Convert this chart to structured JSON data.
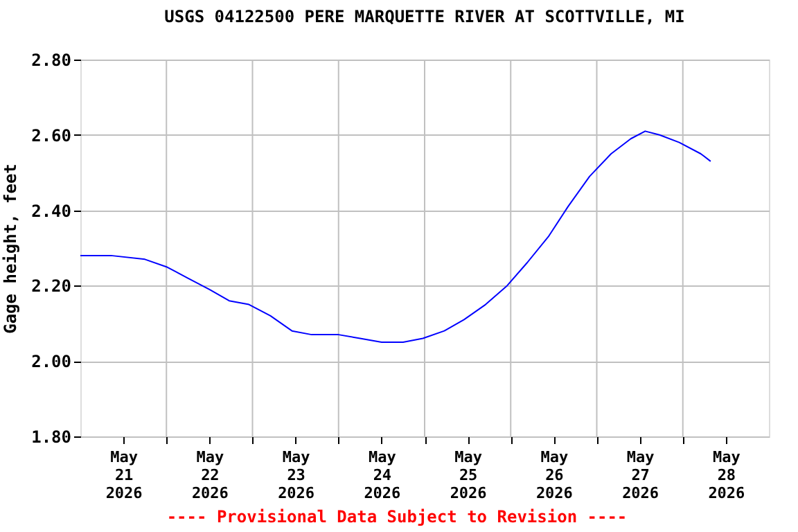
{
  "chart_data": {
    "type": "line",
    "title": "USGS 04122500 PERE MARQUETTE RIVER AT SCOTTVILLE, MI",
    "ylabel": "Gage height, feet",
    "annotations": [
      "---- Provisional Data Subject to Revision ----"
    ],
    "x": [
      "2026-05-21T00:00",
      "2026-05-21T08:30",
      "2026-05-21T18:00",
      "2026-05-22T00:00",
      "2026-05-22T06:00",
      "2026-05-22T12:00",
      "2026-05-22T17:30",
      "2026-05-22T23:00",
      "2026-05-23T05:00",
      "2026-05-23T11:00",
      "2026-05-23T16:30",
      "2026-05-24T00:00",
      "2026-05-24T06:00",
      "2026-05-24T12:00",
      "2026-05-24T18:00",
      "2026-05-24T23:30",
      "2026-05-25T05:30",
      "2026-05-25T11:00",
      "2026-05-25T17:00",
      "2026-05-25T23:00",
      "2026-05-26T04:30",
      "2026-05-26T10:30",
      "2026-05-26T16:00",
      "2026-05-26T22:00",
      "2026-05-27T04:00",
      "2026-05-27T09:30",
      "2026-05-27T13:30",
      "2026-05-27T17:30",
      "2026-05-27T23:00",
      "2026-05-28T05:00",
      "2026-05-28T07:45"
    ],
    "series": [
      {
        "color": "#0000ff",
        "values": [
          2.28,
          2.28,
          2.27,
          2.25,
          2.22,
          2.19,
          2.16,
          2.15,
          2.12,
          2.08,
          2.07,
          2.07,
          2.06,
          2.05,
          2.05,
          2.06,
          2.08,
          2.11,
          2.15,
          2.2,
          2.26,
          2.33,
          2.41,
          2.49,
          2.55,
          2.59,
          2.61,
          2.6,
          2.58,
          2.55,
          2.53
        ]
      }
    ],
    "xlim": [
      "2026-05-21T00:00",
      "2026-05-29T00:00"
    ],
    "xticks": [
      {
        "value": "2026-05-21T12:00",
        "label": "May\n21\n2026"
      },
      {
        "value": "2026-05-22T12:00",
        "label": "May\n22\n2026"
      },
      {
        "value": "2026-05-23T12:00",
        "label": "May\n23\n2026"
      },
      {
        "value": "2026-05-24T12:00",
        "label": "May\n24\n2026"
      },
      {
        "value": "2026-05-25T12:00",
        "label": "May\n25\n2026"
      },
      {
        "value": "2026-05-26T12:00",
        "label": "May\n26\n2026"
      },
      {
        "value": "2026-05-27T12:00",
        "label": "May\n27\n2026"
      },
      {
        "value": "2026-05-28T12:00",
        "label": "May\n28\n2026"
      },
      {
        "value": "2026-05-22T00:00",
        "label": null
      },
      {
        "value": "2026-05-23T00:00",
        "label": null
      },
      {
        "value": "2026-05-24T00:00",
        "label": null
      },
      {
        "value": "2026-05-25T00:00",
        "label": null
      },
      {
        "value": "2026-05-26T00:00",
        "label": null
      },
      {
        "value": "2026-05-27T00:00",
        "label": null
      },
      {
        "value": "2026-05-28T00:00",
        "label": null
      }
    ],
    "ylim": [
      1.8,
      2.8
    ],
    "yticks": [
      {
        "value": 1.8,
        "label": "1.80"
      },
      {
        "value": 2.0,
        "label": "2.00"
      },
      {
        "value": 2.2,
        "label": "2.20"
      },
      {
        "value": 2.4,
        "label": "2.40"
      },
      {
        "value": 2.6,
        "label": "2.60"
      },
      {
        "value": 2.8,
        "label": "2.80"
      }
    ],
    "grid": true
  }
}
